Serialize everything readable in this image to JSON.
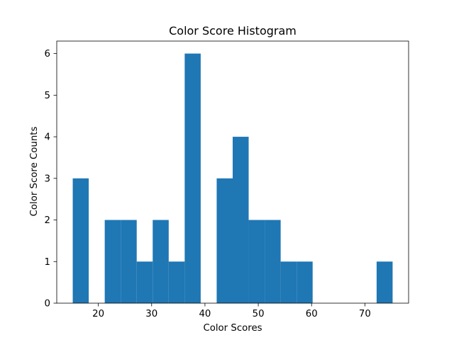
{
  "chart_data": {
    "type": "bar",
    "title": "Color Score Histogram",
    "xlabel": "Color Scores",
    "ylabel": "Color Score Counts",
    "xlim": [
      12.2,
      78.2
    ],
    "ylim": [
      0,
      6.3
    ],
    "xticks": [
      20,
      30,
      40,
      50,
      60,
      70
    ],
    "yticks": [
      0,
      1,
      2,
      3,
      4,
      5,
      6
    ],
    "bin_edges": [
      15.2,
      18.2,
      21.2,
      24.2,
      27.2,
      30.2,
      33.2,
      36.2,
      39.2,
      42.2,
      45.2,
      48.2,
      51.2,
      54.2,
      57.2,
      60.2,
      63.2,
      66.2,
      69.2,
      72.2,
      75.2
    ],
    "counts": [
      3,
      0,
      2,
      2,
      1,
      2,
      1,
      6,
      0,
      3,
      4,
      2,
      2,
      1,
      1,
      0,
      0,
      0,
      0,
      1
    ],
    "bar_color": "#1f77b4",
    "grid": false,
    "legend": "none"
  }
}
